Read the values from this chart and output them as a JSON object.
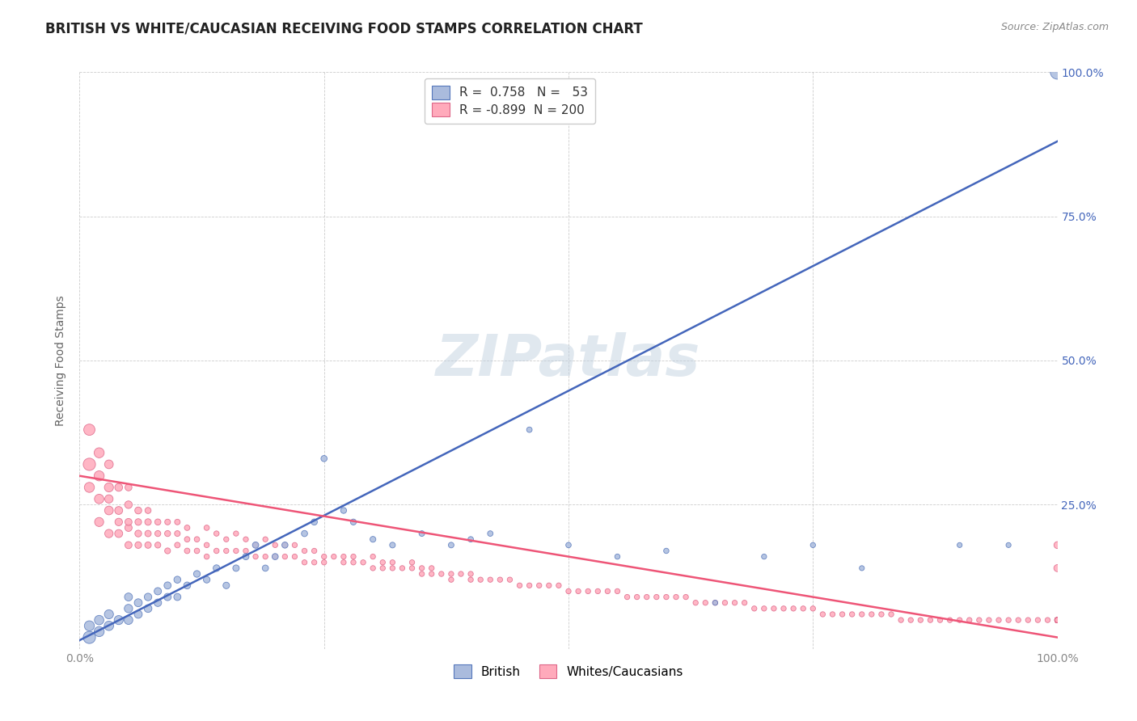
{
  "title": "BRITISH VS WHITE/CAUCASIAN RECEIVING FOOD STAMPS CORRELATION CHART",
  "source": "Source: ZipAtlas.com",
  "ylabel": "Receiving Food Stamps",
  "watermark": "ZIPatlas",
  "blue_R": 0.758,
  "blue_N": 53,
  "pink_R": -0.899,
  "pink_N": 200,
  "blue_fill_color": "#AABBDD",
  "blue_edge_color": "#5577BB",
  "pink_fill_color": "#FFAABB",
  "pink_edge_color": "#DD6688",
  "blue_line_color": "#4466BB",
  "pink_line_color": "#EE5577",
  "grid_color": "#CCCCCC",
  "background_color": "#FFFFFF",
  "right_tick_color": "#4466BB",
  "bottom_tick_color": "#888888",
  "watermark_color": "#BBCCDD",
  "watermark_alpha": 0.45,
  "watermark_fontsize": 52,
  "title_fontsize": 12,
  "source_fontsize": 9,
  "ylabel_fontsize": 10,
  "tick_fontsize": 10,
  "legend_fontsize": 11,
  "blue_scatter_x": [
    1,
    1,
    2,
    2,
    3,
    3,
    4,
    5,
    5,
    5,
    6,
    6,
    7,
    7,
    8,
    8,
    9,
    9,
    10,
    10,
    11,
    12,
    13,
    14,
    15,
    16,
    17,
    18,
    19,
    20,
    21,
    23,
    24,
    25,
    27,
    28,
    30,
    32,
    35,
    38,
    40,
    42,
    46,
    50,
    55,
    60,
    65,
    70,
    75,
    80,
    90,
    95,
    100
  ],
  "blue_scatter_y": [
    2,
    4,
    3,
    5,
    4,
    6,
    5,
    5,
    7,
    9,
    6,
    8,
    7,
    9,
    8,
    10,
    9,
    11,
    9,
    12,
    11,
    13,
    12,
    14,
    11,
    14,
    16,
    18,
    14,
    16,
    18,
    20,
    22,
    33,
    24,
    22,
    19,
    18,
    20,
    18,
    19,
    20,
    38,
    18,
    16,
    17,
    8,
    16,
    18,
    14,
    18,
    18,
    100
  ],
  "blue_scatter_s": [
    120,
    80,
    80,
    70,
    70,
    65,
    65,
    60,
    55,
    50,
    50,
    50,
    48,
    45,
    45,
    42,
    42,
    40,
    40,
    38,
    38,
    36,
    35,
    35,
    34,
    33,
    32,
    32,
    31,
    31,
    30,
    30,
    30,
    30,
    28,
    28,
    27,
    26,
    25,
    25,
    24,
    24,
    24,
    23,
    22,
    22,
    21,
    21,
    21,
    20,
    20,
    20,
    160
  ],
  "pink_scatter_x": [
    1,
    1,
    1,
    2,
    2,
    2,
    2,
    3,
    3,
    3,
    3,
    3,
    4,
    4,
    4,
    4,
    5,
    5,
    5,
    5,
    5,
    6,
    6,
    6,
    6,
    7,
    7,
    7,
    7,
    8,
    8,
    8,
    9,
    9,
    9,
    10,
    10,
    10,
    11,
    11,
    11,
    12,
    12,
    13,
    13,
    13,
    14,
    14,
    15,
    15,
    16,
    16,
    17,
    17,
    18,
    18,
    19,
    19,
    20,
    20,
    21,
    21,
    22,
    22,
    23,
    23,
    24,
    24,
    25,
    25,
    26,
    27,
    27,
    28,
    28,
    29,
    30,
    30,
    31,
    31,
    32,
    32,
    33,
    34,
    34,
    35,
    35,
    36,
    36,
    37,
    38,
    38,
    39,
    40,
    40,
    41,
    42,
    43,
    44,
    45,
    46,
    47,
    48,
    49,
    50,
    51,
    52,
    53,
    54,
    55,
    56,
    57,
    58,
    59,
    60,
    61,
    62,
    63,
    64,
    65,
    66,
    67,
    68,
    69,
    70,
    71,
    72,
    73,
    74,
    75,
    76,
    77,
    78,
    79,
    80,
    81,
    82,
    83,
    84,
    85,
    86,
    87,
    88,
    89,
    90,
    91,
    92,
    93,
    94,
    95,
    96,
    97,
    98,
    99,
    100,
    100,
    100,
    100,
    100,
    100,
    100,
    100,
    100,
    100,
    100,
    100,
    100,
    100,
    100,
    100,
    100,
    100,
    100,
    100,
    100,
    100,
    100,
    100,
    100,
    100,
    100,
    100,
    100,
    100,
    100,
    100,
    100,
    100,
    100,
    100,
    100,
    100,
    100,
    100,
    100,
    100,
    100,
    100,
    100,
    100
  ],
  "pink_scatter_y": [
    32,
    38,
    28,
    30,
    34,
    26,
    22,
    28,
    24,
    32,
    20,
    26,
    24,
    20,
    28,
    22,
    25,
    21,
    18,
    22,
    28,
    24,
    20,
    18,
    22,
    22,
    18,
    20,
    24,
    22,
    18,
    20,
    20,
    17,
    22,
    20,
    18,
    22,
    19,
    17,
    21,
    19,
    17,
    21,
    18,
    16,
    20,
    17,
    19,
    17,
    20,
    17,
    19,
    17,
    18,
    16,
    19,
    16,
    18,
    16,
    18,
    16,
    18,
    16,
    17,
    15,
    17,
    15,
    16,
    15,
    16,
    16,
    15,
    15,
    16,
    15,
    14,
    16,
    14,
    15,
    14,
    15,
    14,
    14,
    15,
    14,
    13,
    14,
    13,
    13,
    13,
    12,
    13,
    13,
    12,
    12,
    12,
    12,
    12,
    11,
    11,
    11,
    11,
    11,
    10,
    10,
    10,
    10,
    10,
    10,
    9,
    9,
    9,
    9,
    9,
    9,
    9,
    8,
    8,
    8,
    8,
    8,
    8,
    7,
    7,
    7,
    7,
    7,
    7,
    7,
    6,
    6,
    6,
    6,
    6,
    6,
    6,
    6,
    5,
    5,
    5,
    5,
    5,
    5,
    5,
    5,
    5,
    5,
    5,
    5,
    5,
    5,
    5,
    5,
    5,
    5,
    5,
    5,
    5,
    5,
    5,
    5,
    5,
    5,
    5,
    5,
    5,
    5,
    5,
    5,
    5,
    5,
    5,
    5,
    5,
    5,
    5,
    5,
    5,
    5,
    5,
    5,
    5,
    5,
    5,
    5,
    5,
    5,
    5,
    5,
    5,
    5,
    5,
    5,
    5,
    5,
    5,
    5,
    14,
    18
  ],
  "pink_scatter_s": [
    120,
    100,
    80,
    80,
    80,
    70,
    65,
    65,
    60,
    60,
    55,
    55,
    50,
    50,
    48,
    45,
    45,
    42,
    40,
    40,
    38,
    38,
    36,
    35,
    35,
    34,
    33,
    32,
    30,
    30,
    28,
    28,
    28,
    27,
    26,
    26,
    25,
    25,
    24,
    24,
    24,
    23,
    23,
    23,
    22,
    22,
    22,
    22,
    21,
    21,
    21,
    21,
    21,
    21,
    21,
    21,
    21,
    21,
    21,
    21,
    21,
    21,
    21,
    21,
    21,
    21,
    21,
    21,
    21,
    21,
    21,
    21,
    21,
    21,
    21,
    21,
    21,
    21,
    21,
    21,
    21,
    21,
    21,
    21,
    21,
    21,
    21,
    21,
    21,
    21,
    21,
    21,
    21,
    21,
    21,
    21,
    21,
    21,
    21,
    21,
    21,
    21,
    21,
    21,
    21,
    21,
    21,
    21,
    21,
    21,
    21,
    21,
    21,
    21,
    21,
    21,
    21,
    21,
    21,
    21,
    21,
    21,
    21,
    21,
    21,
    21,
    21,
    21,
    21,
    21,
    21,
    21,
    21,
    21,
    21,
    21,
    21,
    21,
    21,
    21,
    21,
    21,
    21,
    21,
    21,
    21,
    21,
    21,
    21,
    21,
    21,
    21,
    21,
    21,
    21,
    21,
    21,
    21,
    21,
    21,
    21,
    21,
    21,
    21,
    21,
    21,
    21,
    21,
    21,
    21,
    21,
    21,
    21,
    21,
    21,
    21,
    21,
    21,
    21,
    21,
    21,
    21,
    21,
    21,
    21,
    21,
    21,
    21,
    21,
    21,
    21,
    21,
    21,
    21,
    21,
    21,
    21,
    21,
    40,
    38
  ],
  "blue_trend_x0": 0,
  "blue_trend_y0": 1.5,
  "blue_trend_x1": 100,
  "blue_trend_y1": 88,
  "pink_trend_x0": 0,
  "pink_trend_y0": 30,
  "pink_trend_x1": 100,
  "pink_trend_y1": 2,
  "xlim": [
    0,
    100
  ],
  "ylim": [
    0,
    100
  ],
  "xtick_vals": [
    0,
    25,
    50,
    75,
    100
  ],
  "ytick_vals": [
    0,
    25,
    50,
    75,
    100
  ],
  "xtick_labels": [
    "0.0%",
    "",
    "",
    "",
    "100.0%"
  ],
  "left_ytick_labels": [
    "",
    "",
    "",
    "",
    ""
  ],
  "right_ytick_labels": [
    "",
    "25.0%",
    "50.0%",
    "75.0%",
    "100.0%"
  ]
}
